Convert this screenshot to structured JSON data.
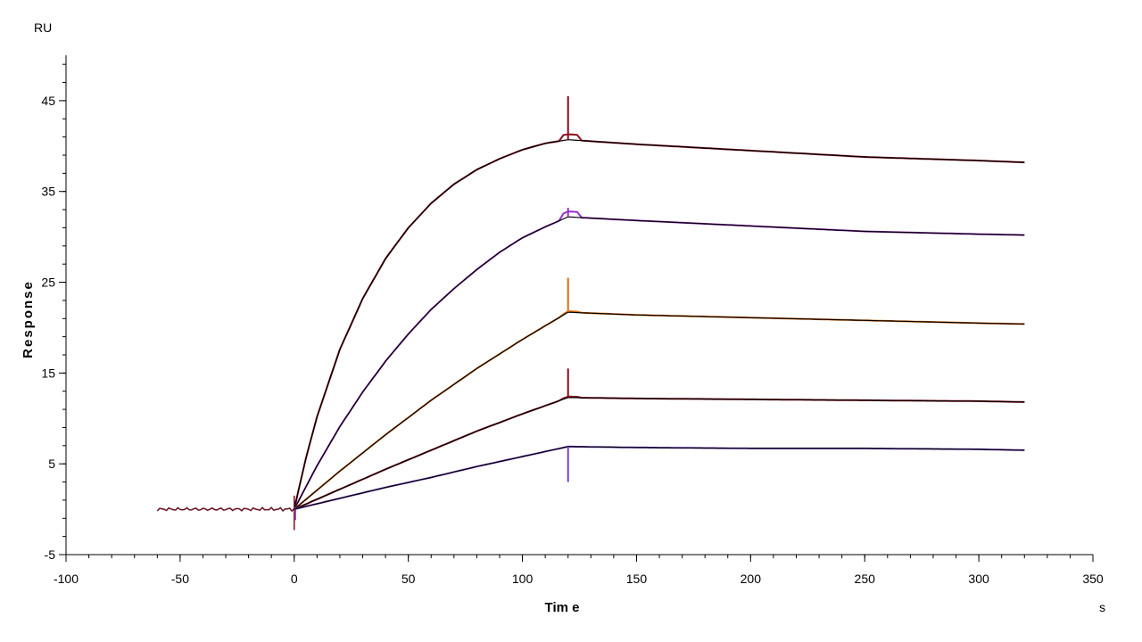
{
  "chart_data": {
    "type": "line",
    "y_unit": "RU",
    "x_unit": "s",
    "xlabel": "Tim e",
    "ylabel": "Response",
    "xlim": [
      -100,
      350
    ],
    "ylim": [
      -5,
      50
    ],
    "x_ticks": [
      -100,
      -50,
      0,
      50,
      100,
      150,
      200,
      250,
      300,
      350
    ],
    "y_ticks": [
      -5,
      5,
      15,
      25,
      35,
      45
    ],
    "x_minor_step": 10,
    "y_minor_step": 2,
    "grid": false,
    "legend": "none",
    "baseline": {
      "x_start": -60,
      "x_end": 0,
      "y": 0
    },
    "association_end_x": 120,
    "dissociation_end_x": 320,
    "series": [
      {
        "color": "#8B0A1A",
        "fit_color": "#000000",
        "plateau": 40.7,
        "peak": 41.3,
        "end_value": 38.2,
        "spike_x": 120,
        "spike_value": 45.5,
        "points": [
          [
            0,
            0
          ],
          [
            5,
            5.5
          ],
          [
            10,
            10.2
          ],
          [
            20,
            17.6
          ],
          [
            30,
            23.2
          ],
          [
            40,
            27.6
          ],
          [
            50,
            31
          ],
          [
            60,
            33.7
          ],
          [
            70,
            35.8
          ],
          [
            80,
            37.4
          ],
          [
            90,
            38.6
          ],
          [
            100,
            39.6
          ],
          [
            110,
            40.3
          ],
          [
            120,
            40.7
          ],
          [
            150,
            40.2
          ],
          [
            200,
            39.5
          ],
          [
            250,
            38.8
          ],
          [
            300,
            38.4
          ],
          [
            320,
            38.2
          ]
        ]
      },
      {
        "color": "#9B30C8",
        "fit_color": "#000000",
        "plateau": 32.2,
        "peak": 32.8,
        "end_value": 30.2,
        "spike_x": 120,
        "spike_value": 33.2,
        "points": [
          [
            0,
            0
          ],
          [
            10,
            4.8
          ],
          [
            20,
            9.1
          ],
          [
            30,
            12.9
          ],
          [
            40,
            16.3
          ],
          [
            50,
            19.3
          ],
          [
            60,
            22
          ],
          [
            70,
            24.3
          ],
          [
            80,
            26.4
          ],
          [
            90,
            28.3
          ],
          [
            100,
            29.9
          ],
          [
            110,
            31.1
          ],
          [
            120,
            32.2
          ],
          [
            150,
            31.8
          ],
          [
            200,
            31.2
          ],
          [
            250,
            30.6
          ],
          [
            300,
            30.3
          ],
          [
            320,
            30.2
          ]
        ]
      },
      {
        "color": "#E06B10",
        "fit_color": "#000000",
        "plateau": 21.7,
        "peak": 21.8,
        "end_value": 20.4,
        "spike_x": 120,
        "spike_value": 25.5,
        "points": [
          [
            0,
            0
          ],
          [
            20,
            4.2
          ],
          [
            40,
            8.2
          ],
          [
            60,
            12
          ],
          [
            80,
            15.5
          ],
          [
            100,
            18.7
          ],
          [
            120,
            21.7
          ],
          [
            150,
            21.4
          ],
          [
            200,
            21.1
          ],
          [
            250,
            20.8
          ],
          [
            300,
            20.5
          ],
          [
            320,
            20.4
          ]
        ]
      },
      {
        "color": "#8B0A1A",
        "fit_color": "#000000",
        "plateau": 12.3,
        "peak": 12.4,
        "end_value": 11.8,
        "spike_x": 120,
        "spike_value": 15.5,
        "points": [
          [
            0,
            0
          ],
          [
            20,
            2.2
          ],
          [
            40,
            4.4
          ],
          [
            60,
            6.5
          ],
          [
            80,
            8.6
          ],
          [
            100,
            10.5
          ],
          [
            120,
            12.3
          ],
          [
            150,
            12.2
          ],
          [
            200,
            12.1
          ],
          [
            250,
            12
          ],
          [
            300,
            11.9
          ],
          [
            320,
            11.8
          ]
        ]
      },
      {
        "color": "#7A40D0",
        "fit_color": "#000000",
        "plateau": 6.9,
        "peak": 6.9,
        "end_value": 6.5,
        "spike_x": 120,
        "spike_value": 3,
        "points": [
          [
            0,
            0
          ],
          [
            20,
            1.2
          ],
          [
            40,
            2.4
          ],
          [
            60,
            3.5
          ],
          [
            80,
            4.7
          ],
          [
            100,
            5.8
          ],
          [
            120,
            6.9
          ],
          [
            150,
            6.8
          ],
          [
            200,
            6.7
          ],
          [
            250,
            6.7
          ],
          [
            300,
            6.6
          ],
          [
            320,
            6.5
          ]
        ]
      }
    ]
  }
}
